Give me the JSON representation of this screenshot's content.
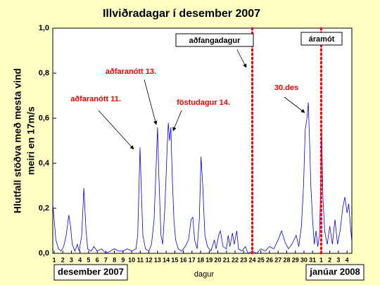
{
  "chart_data": {
    "type": "line",
    "title": "Illviðradagar í desember 2007",
    "x_label": "dagur",
    "y_label": [
      "Hlutfall stöðva með mesta vind",
      "meiri en 17m/s"
    ],
    "period_labels": [
      "desember 2007",
      "janúar 2008"
    ],
    "color": "#0000ff",
    "x": [
      0.84,
      1.0,
      1.2,
      1.5,
      1.8,
      2.1,
      2.4,
      2.7,
      2.9,
      3.1,
      3.4,
      3.7,
      3.9,
      4.2,
      4.45,
      4.7,
      4.9,
      5.3,
      5.6,
      6.0,
      6.5,
      7.0,
      7.5,
      8.0,
      8.5,
      9.0,
      9.5,
      10.0,
      10.5,
      10.7,
      10.85,
      10.97,
      11.1,
      11.3,
      11.6,
      12.0,
      12.3,
      12.6,
      12.85,
      13.0,
      13.15,
      13.4,
      13.6,
      13.85,
      14.1,
      14.25,
      14.4,
      14.55,
      14.7,
      14.9,
      15.1,
      15.4,
      15.8,
      16.2,
      16.6,
      16.9,
      17.1,
      17.3,
      17.6,
      17.85,
      18.05,
      18.25,
      18.5,
      18.8,
      19.2,
      19.6,
      19.8,
      20.1,
      20.3,
      20.6,
      21.0,
      21.2,
      21.4,
      21.7,
      21.9,
      22.2,
      22.4,
      22.8,
      23.2,
      23.5,
      24.0,
      24.5,
      25.0,
      25.5,
      26.0,
      26.5,
      27.0,
      27.4,
      27.8,
      28.2,
      28.6,
      29.1,
      29.4,
      29.7,
      29.95,
      30.15,
      30.35,
      30.5,
      30.65,
      30.8,
      31.0,
      31.2,
      31.4,
      31.6,
      31.8,
      31.95,
      32.05,
      32.2,
      32.4,
      32.7,
      33.0,
      33.3,
      33.6,
      33.9,
      34.2,
      34.5,
      34.75,
      35.0,
      35.2,
      35.4,
      35.56
    ],
    "values": [
      0.22,
      0.15,
      0.06,
      0.02,
      0.01,
      0.03,
      0.08,
      0.17,
      0.12,
      0.04,
      0.01,
      0.04,
      0.01,
      0.08,
      0.29,
      0.1,
      0.02,
      0.01,
      0.03,
      0.01,
      0.02,
      0.0,
      0.01,
      0.02,
      0.01,
      0.01,
      0.02,
      0.01,
      0.02,
      0.08,
      0.3,
      0.47,
      0.3,
      0.08,
      0.02,
      0.01,
      0.04,
      0.15,
      0.4,
      0.56,
      0.35,
      0.08,
      0.04,
      0.2,
      0.45,
      0.58,
      0.5,
      0.56,
      0.35,
      0.15,
      0.06,
      0.02,
      0.01,
      0.03,
      0.06,
      0.15,
      0.16,
      0.06,
      0.02,
      0.15,
      0.43,
      0.3,
      0.08,
      0.03,
      0.01,
      0.06,
      0.02,
      0.08,
      0.1,
      0.03,
      0.02,
      0.08,
      0.03,
      0.09,
      0.04,
      0.1,
      0.02,
      0.01,
      0.03,
      0.0,
      0.01,
      0.0,
      0.02,
      0.01,
      0.03,
      0.02,
      0.06,
      0.1,
      0.05,
      0.02,
      0.04,
      0.08,
      0.03,
      0.12,
      0.3,
      0.55,
      0.6,
      0.67,
      0.5,
      0.3,
      0.15,
      0.04,
      0.1,
      0.03,
      0.08,
      0.3,
      0.55,
      0.25,
      0.1,
      0.04,
      0.12,
      0.04,
      0.15,
      0.04,
      0.1,
      0.2,
      0.25,
      0.18,
      0.22,
      0.12,
      0.05
    ],
    "xlim": [
      0.84,
      35.56
    ],
    "ylim": [
      0,
      1
    ],
    "xticks": [
      1,
      2,
      3,
      4,
      5,
      6,
      7,
      8,
      9,
      10,
      11,
      12,
      13,
      14,
      15,
      16,
      17,
      18,
      19,
      20,
      21,
      22,
      23,
      24,
      25,
      26,
      27,
      28,
      29,
      30,
      31,
      {
        "value": 32,
        "label": "1"
      },
      {
        "value": 33,
        "label": "2"
      },
      {
        "value": 34,
        "label": "3"
      },
      {
        "value": 35,
        "label": "4"
      }
    ],
    "yticks": [
      {
        "value": 0,
        "label": "0,0"
      },
      {
        "value": 0.2,
        "label": "0,2"
      },
      {
        "value": 0.4,
        "label": "0,4"
      },
      {
        "value": 0.6,
        "label": "0,6"
      },
      {
        "value": 0.8,
        "label": "0,8"
      },
      {
        "value": 1.0,
        "label": "1,0"
      }
    ],
    "reference_lines": [
      {
        "x": 24,
        "color": "#ff0000"
      },
      {
        "x": 32,
        "color": "#ff0000"
      }
    ],
    "annotations": [
      {
        "text": "aðfaranótt 11.",
        "color": "#ff0000"
      },
      {
        "text": "aðfaranótt 13.",
        "color": "#ff0000"
      },
      {
        "text": "föstudagur 14.",
        "color": "#ff0000"
      },
      {
        "text": "aðfangadagur",
        "color": "#000000"
      },
      {
        "text": "áramót",
        "color": "#000000"
      },
      {
        "text": "30.des",
        "color": "#ff0000"
      }
    ]
  }
}
